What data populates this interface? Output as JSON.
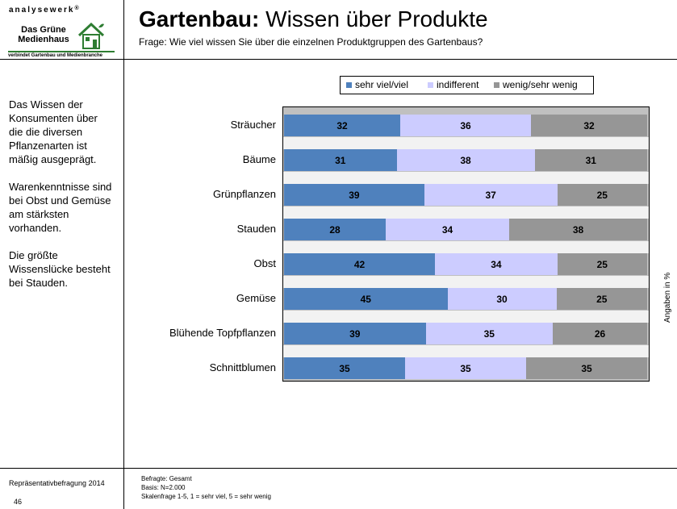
{
  "logo": {
    "brand": "analysewerk",
    "brand_mark": "®",
    "name_line1": "Das Grüne",
    "name_line2": "Medienhaus",
    "tagline": "verbindet Gartenbau und Medienbranche"
  },
  "header": {
    "title_bold": "Gartenbau:",
    "title_rest": " Wissen über Produkte",
    "subtitle": "Frage: Wie viel wissen  Sie über die einzelnen Produktgruppen des Gartenbaus?"
  },
  "sidebar": {
    "paragraphs": [
      "Das Wissen der Konsumenten über die die diversen Pflanzenarten ist mäßig ausgeprägt.",
      "Warenkenntnisse sind bei Obst und Gemüse am stärksten vorhanden.",
      "Die größte Wissenslücke besteht bei Stauden."
    ]
  },
  "footer": {
    "survey": "Repräsentativbefragung 2014",
    "page_number": "46",
    "respondents": "Befragte: Gesamt",
    "basis": "Basis: N=2.000",
    "scale": "Skalenfrage 1-5, 1 = sehr viel, 5 = sehr wenig"
  },
  "unit_note": "Angaben in %",
  "colors": {
    "sehr_viel": "#4f81bd",
    "indifferent": "#ccccff",
    "wenig": "#969696"
  },
  "chart_data": {
    "type": "bar",
    "orientation": "horizontal",
    "stacked": true,
    "normalized": "100%",
    "categories": [
      "Sträucher",
      "Bäume",
      "Grünpflanzen",
      "Stauden",
      "Obst",
      "Gemüse",
      "Blühende Topfpflanzen",
      "Schnittblumen"
    ],
    "series": [
      {
        "name": "sehr viel/viel",
        "color": "#4f81bd",
        "values": [
          32,
          31,
          39,
          28,
          42,
          45,
          39,
          35
        ]
      },
      {
        "name": "indifferent",
        "color": "#ccccff",
        "values": [
          36,
          38,
          37,
          34,
          34,
          30,
          35,
          35
        ]
      },
      {
        "name": "wenig/sehr wenig",
        "color": "#969696",
        "values": [
          32,
          31,
          25,
          38,
          25,
          25,
          26,
          35
        ]
      }
    ],
    "legend_position": "top",
    "grid": false,
    "data_labels": true
  }
}
